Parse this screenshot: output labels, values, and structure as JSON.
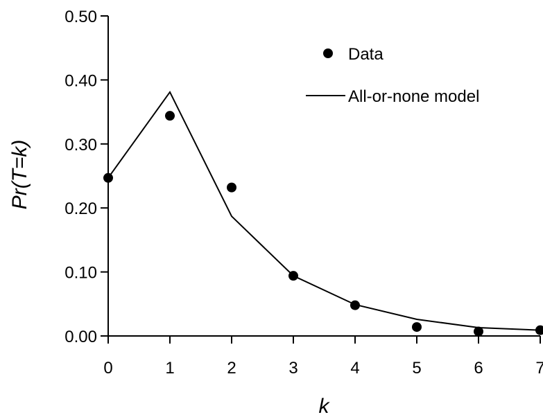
{
  "chart_data": {
    "type": "scatter",
    "xlabel": "k",
    "ylabel": "Pr(T=k)",
    "xlim": [
      0,
      7
    ],
    "ylim": [
      0,
      0.5
    ],
    "x_ticks": [
      "0",
      "1",
      "2",
      "3",
      "4",
      "5",
      "6",
      "7"
    ],
    "y_ticks": [
      "0.00",
      "0.10",
      "0.20",
      "0.30",
      "0.40",
      "0.50"
    ],
    "grid": false,
    "legend_position": "top-right",
    "series": [
      {
        "name": "Data",
        "kind": "scatter",
        "x": [
          0,
          1,
          2,
          3,
          4,
          5,
          6,
          7
        ],
        "y": [
          0.247,
          0.344,
          0.232,
          0.094,
          0.048,
          0.014,
          0.007,
          0.009
        ]
      },
      {
        "name": "All-or-none model",
        "kind": "line",
        "x": [
          0,
          1,
          2,
          3,
          4,
          5,
          6,
          7
        ],
        "y": [
          0.247,
          0.381,
          0.187,
          0.094,
          0.049,
          0.026,
          0.013,
          0.009
        ]
      }
    ]
  }
}
